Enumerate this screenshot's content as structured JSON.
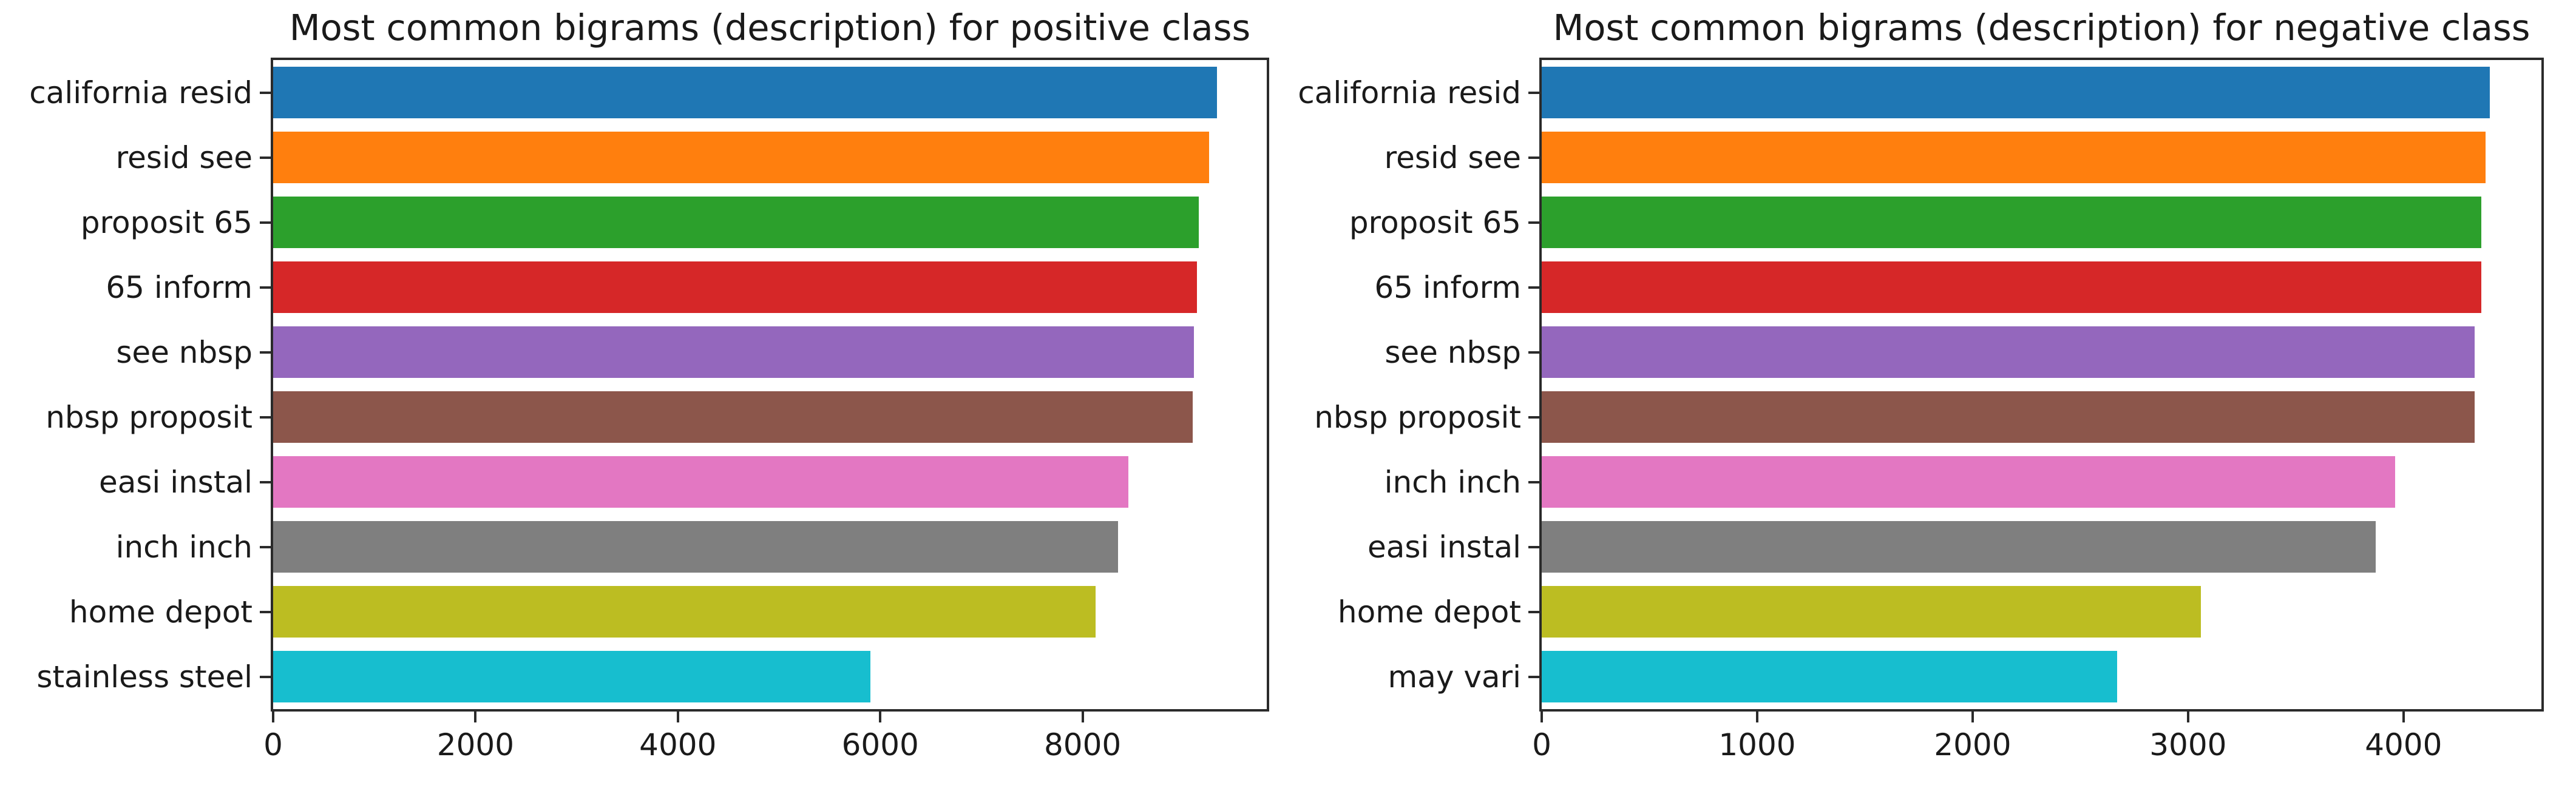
{
  "figure": {
    "background": "#ffffff",
    "text_color": "#1a1a1a",
    "spine_color": "#2b2b2b"
  },
  "palette": [
    "#1f77b4",
    "#ff7f0e",
    "#2ca02c",
    "#d62728",
    "#9467bd",
    "#8c564b",
    "#e377c2",
    "#7f7f7f",
    "#bcbd22",
    "#17becf"
  ],
  "chart_data": [
    {
      "type": "bar",
      "orientation": "horizontal",
      "title": "Most common bigrams (description) for positive class",
      "categories": [
        "california resid",
        "resid see",
        "proposit 65",
        "65 inform",
        "see nbsp",
        "nbsp proposit",
        "easi instal",
        "inch inch",
        "home depot",
        "stainless steel"
      ],
      "values": [
        9330,
        9250,
        9150,
        9130,
        9100,
        9090,
        8450,
        8350,
        8130,
        5900
      ],
      "xlim": [
        0,
        9820
      ],
      "xticks": [
        0,
        2000,
        4000,
        6000,
        8000
      ],
      "xlabel": "",
      "ylabel": "",
      "grid": false,
      "legend": "none"
    },
    {
      "type": "bar",
      "orientation": "horizontal",
      "title": "Most common bigrams (description) for negative class",
      "categories": [
        "california resid",
        "resid see",
        "proposit 65",
        "65 inform",
        "see nbsp",
        "nbsp proposit",
        "inch inch",
        "easi instal",
        "home depot",
        "may vari"
      ],
      "values": [
        4400,
        4380,
        4360,
        4360,
        4330,
        4330,
        3960,
        3870,
        3060,
        2670
      ],
      "xlim": [
        0,
        4640
      ],
      "xticks": [
        0,
        1000,
        2000,
        3000,
        4000
      ],
      "xlabel": "",
      "ylabel": "",
      "grid": false,
      "legend": "none"
    }
  ]
}
